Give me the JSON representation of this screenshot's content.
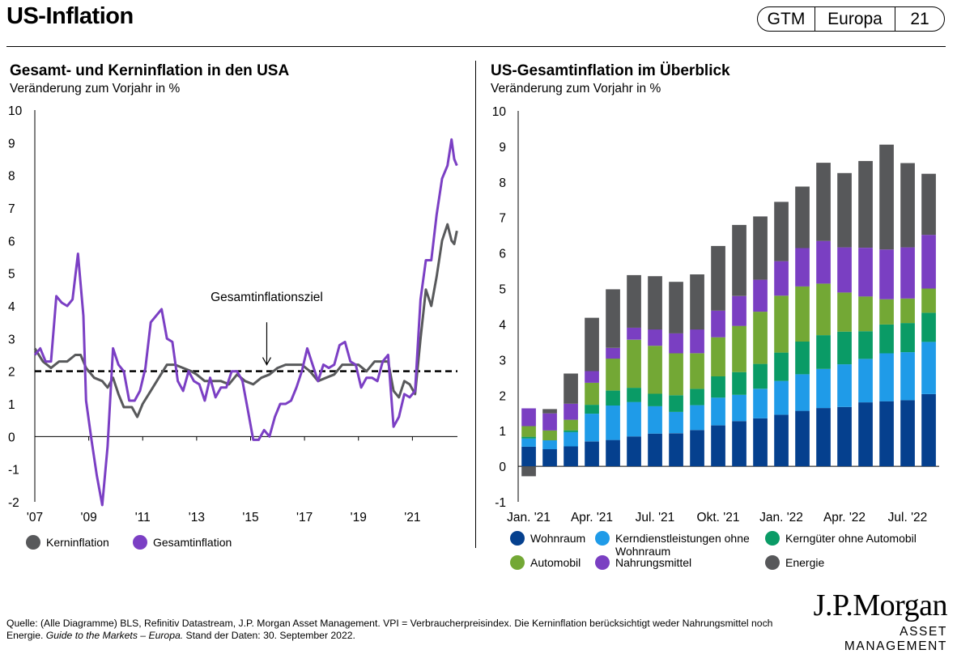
{
  "header": {
    "title": "US-Inflation",
    "pill": [
      "GTM",
      "Europa",
      "21"
    ]
  },
  "chart_data": [
    {
      "type": "line",
      "title": "Gesamt- und Kerninflation in den USA",
      "subtitle": "Veränderung zum Vorjahr in %",
      "xlabel": "",
      "ylabel": "",
      "ylim": [
        -2,
        10
      ],
      "yticks": [
        "10",
        "9",
        "8",
        "7",
        "6",
        "5",
        "4",
        "3",
        "2",
        "1",
        "0",
        "-1",
        "-2"
      ],
      "xlim": [
        2007.0,
        2022.67
      ],
      "xtick_labels": [
        "'07",
        "'09",
        "'11",
        "'13",
        "'15",
        "'17",
        "'19",
        "'21"
      ],
      "xtick_values": [
        2007,
        2009,
        2011,
        2013,
        2015,
        2017,
        2019,
        2021
      ],
      "target": {
        "value": 2,
        "label": "Gesamtinflationsziel"
      },
      "series": [
        {
          "name": "Kerninflation",
          "color": "#58595b",
          "points": [
            [
              2007.0,
              2.7
            ],
            [
              2007.3,
              2.3
            ],
            [
              2007.6,
              2.1
            ],
            [
              2007.9,
              2.3
            ],
            [
              2008.2,
              2.3
            ],
            [
              2008.5,
              2.5
            ],
            [
              2008.7,
              2.5
            ],
            [
              2008.9,
              2.1
            ],
            [
              2009.2,
              1.8
            ],
            [
              2009.5,
              1.7
            ],
            [
              2009.7,
              1.5
            ],
            [
              2009.9,
              1.8
            ],
            [
              2010.1,
              1.3
            ],
            [
              2010.3,
              0.9
            ],
            [
              2010.6,
              0.9
            ],
            [
              2010.8,
              0.6
            ],
            [
              2011.0,
              1.0
            ],
            [
              2011.3,
              1.4
            ],
            [
              2011.6,
              1.8
            ],
            [
              2011.9,
              2.2
            ],
            [
              2012.2,
              2.2
            ],
            [
              2012.5,
              2.1
            ],
            [
              2012.8,
              2.0
            ],
            [
              2013.0,
              1.9
            ],
            [
              2013.3,
              1.7
            ],
            [
              2013.6,
              1.7
            ],
            [
              2013.9,
              1.7
            ],
            [
              2014.2,
              1.6
            ],
            [
              2014.5,
              1.9
            ],
            [
              2014.8,
              1.7
            ],
            [
              2015.1,
              1.6
            ],
            [
              2015.4,
              1.8
            ],
            [
              2015.7,
              1.9
            ],
            [
              2016.0,
              2.1
            ],
            [
              2016.3,
              2.2
            ],
            [
              2016.6,
              2.2
            ],
            [
              2016.9,
              2.2
            ],
            [
              2017.2,
              2.0
            ],
            [
              2017.5,
              1.7
            ],
            [
              2017.8,
              1.8
            ],
            [
              2018.1,
              1.9
            ],
            [
              2018.4,
              2.2
            ],
            [
              2018.7,
              2.2
            ],
            [
              2019.0,
              2.2
            ],
            [
              2019.3,
              2.0
            ],
            [
              2019.6,
              2.3
            ],
            [
              2019.9,
              2.3
            ],
            [
              2020.1,
              2.3
            ],
            [
              2020.3,
              1.4
            ],
            [
              2020.5,
              1.2
            ],
            [
              2020.7,
              1.7
            ],
            [
              2020.9,
              1.6
            ],
            [
              2021.1,
              1.3
            ],
            [
              2021.3,
              3.0
            ],
            [
              2021.5,
              4.5
            ],
            [
              2021.7,
              4.0
            ],
            [
              2021.9,
              4.9
            ],
            [
              2022.1,
              6.0
            ],
            [
              2022.3,
              6.5
            ],
            [
              2022.45,
              6.0
            ],
            [
              2022.55,
              5.9
            ],
            [
              2022.65,
              6.3
            ]
          ]
        },
        {
          "name": "Gesamtinflation",
          "color": "#7b3fc4",
          "points": [
            [
              2007.0,
              2.5
            ],
            [
              2007.2,
              2.7
            ],
            [
              2007.4,
              2.3
            ],
            [
              2007.6,
              2.3
            ],
            [
              2007.8,
              4.3
            ],
            [
              2008.0,
              4.1
            ],
            [
              2008.2,
              4.0
            ],
            [
              2008.4,
              4.2
            ],
            [
              2008.6,
              5.6
            ],
            [
              2008.8,
              3.7
            ],
            [
              2008.9,
              1.1
            ],
            [
              2009.1,
              -0.1
            ],
            [
              2009.3,
              -1.2
            ],
            [
              2009.5,
              -2.1
            ],
            [
              2009.7,
              -0.3
            ],
            [
              2009.9,
              2.7
            ],
            [
              2010.1,
              2.2
            ],
            [
              2010.3,
              2.0
            ],
            [
              2010.5,
              1.1
            ],
            [
              2010.7,
              1.1
            ],
            [
              2010.9,
              1.4
            ],
            [
              2011.1,
              2.1
            ],
            [
              2011.3,
              3.5
            ],
            [
              2011.5,
              3.7
            ],
            [
              2011.7,
              3.9
            ],
            [
              2011.9,
              3.0
            ],
            [
              2012.1,
              2.9
            ],
            [
              2012.3,
              1.7
            ],
            [
              2012.5,
              1.4
            ],
            [
              2012.7,
              2.0
            ],
            [
              2012.9,
              1.7
            ],
            [
              2013.1,
              1.6
            ],
            [
              2013.3,
              1.1
            ],
            [
              2013.5,
              1.8
            ],
            [
              2013.7,
              1.2
            ],
            [
              2013.9,
              1.5
            ],
            [
              2014.1,
              1.5
            ],
            [
              2014.3,
              2.0
            ],
            [
              2014.5,
              2.0
            ],
            [
              2014.7,
              1.7
            ],
            [
              2014.9,
              0.8
            ],
            [
              2015.1,
              -0.1
            ],
            [
              2015.3,
              -0.1
            ],
            [
              2015.5,
              0.2
            ],
            [
              2015.7,
              0.0
            ],
            [
              2015.9,
              0.6
            ],
            [
              2016.1,
              1.0
            ],
            [
              2016.3,
              1.0
            ],
            [
              2016.5,
              1.1
            ],
            [
              2016.7,
              1.5
            ],
            [
              2016.9,
              2.0
            ],
            [
              2017.1,
              2.7
            ],
            [
              2017.3,
              2.2
            ],
            [
              2017.5,
              1.7
            ],
            [
              2017.7,
              2.2
            ],
            [
              2017.9,
              2.1
            ],
            [
              2018.1,
              2.2
            ],
            [
              2018.3,
              2.8
            ],
            [
              2018.5,
              2.9
            ],
            [
              2018.7,
              2.3
            ],
            [
              2018.9,
              2.2
            ],
            [
              2019.1,
              1.5
            ],
            [
              2019.3,
              1.8
            ],
            [
              2019.5,
              1.8
            ],
            [
              2019.7,
              1.7
            ],
            [
              2019.9,
              2.3
            ],
            [
              2020.1,
              2.5
            ],
            [
              2020.3,
              0.3
            ],
            [
              2020.5,
              0.6
            ],
            [
              2020.7,
              1.3
            ],
            [
              2020.9,
              1.2
            ],
            [
              2021.1,
              1.4
            ],
            [
              2021.3,
              4.2
            ],
            [
              2021.5,
              5.4
            ],
            [
              2021.7,
              5.4
            ],
            [
              2021.9,
              6.8
            ],
            [
              2022.1,
              7.9
            ],
            [
              2022.3,
              8.3
            ],
            [
              2022.45,
              9.1
            ],
            [
              2022.55,
              8.5
            ],
            [
              2022.65,
              8.3
            ]
          ]
        }
      ],
      "legend": {
        "placement": "bottom-left"
      }
    },
    {
      "type": "bar",
      "stacked": true,
      "title": "US-Gesamtinflation im Überblick",
      "subtitle": "Veränderung zum Vorjahr in %",
      "xlabel": "",
      "ylabel": "",
      "ylim": [
        -1,
        10
      ],
      "yticks": [
        "10",
        "9",
        "8",
        "7",
        "6",
        "5",
        "4",
        "3",
        "2",
        "1",
        "0",
        "-1"
      ],
      "categories": [
        "Jan. '21",
        "Feb. '21",
        "Mär. '21",
        "Apr. '21",
        "Mai '21",
        "Jun. '21",
        "Jul. '21",
        "Aug. '21",
        "Sep. '21",
        "Okt. '21",
        "Nov. '21",
        "Dez. '21",
        "Jan. '22",
        "Feb. '22",
        "Mär. '22",
        "Apr. '22",
        "Mai '22",
        "Jun. '22",
        "Jul. '22",
        "Aug. '22"
      ],
      "xtick_labels": [
        "Jan. '21",
        "Apr. '21",
        "Jul. '21",
        "Okt. '21",
        "Jan. '22",
        "Apr. '22",
        "Jul. '22"
      ],
      "xtick_index": [
        0,
        3,
        6,
        9,
        12,
        15,
        18
      ],
      "series": [
        {
          "name": "Wohnraum",
          "color": "#05408e",
          "values": [
            0.55,
            0.48,
            0.56,
            0.7,
            0.74,
            0.84,
            0.92,
            0.93,
            1.02,
            1.15,
            1.27,
            1.35,
            1.45,
            1.56,
            1.64,
            1.67,
            1.8,
            1.83,
            1.86,
            2.03
          ]
        },
        {
          "name": "Kerndienstleistungen ohne Wohnraum",
          "color": "#1f9be8",
          "values": [
            0.23,
            0.25,
            0.4,
            0.78,
            0.97,
            0.97,
            0.77,
            0.6,
            0.7,
            0.78,
            0.74,
            0.83,
            0.95,
            1.03,
            1.1,
            1.2,
            1.22,
            1.35,
            1.35,
            1.47
          ]
        },
        {
          "name": "Kerngüter ohne Automobil",
          "color": "#0a9b66",
          "values": [
            0.05,
            0.0,
            0.05,
            0.25,
            0.42,
            0.4,
            0.35,
            0.47,
            0.46,
            0.6,
            0.64,
            0.7,
            0.8,
            0.92,
            0.95,
            0.92,
            0.78,
            0.81,
            0.82,
            0.82
          ]
        },
        {
          "name": "Automobil",
          "color": "#73a835",
          "values": [
            0.3,
            0.28,
            0.3,
            0.62,
            0.9,
            1.35,
            1.35,
            1.18,
            1.0,
            1.1,
            1.3,
            1.47,
            1.6,
            1.55,
            1.45,
            1.1,
            0.98,
            0.71,
            0.69,
            0.68
          ]
        },
        {
          "name": "Nahrungsmittel",
          "color": "#7a3fc2",
          "values": [
            0.5,
            0.48,
            0.45,
            0.33,
            0.3,
            0.34,
            0.46,
            0.56,
            0.67,
            0.75,
            0.84,
            0.9,
            0.97,
            1.08,
            1.2,
            1.27,
            1.37,
            1.4,
            1.44,
            1.51
          ]
        },
        {
          "name": "Energie",
          "color": "#57585a",
          "values": [
            -0.28,
            0.12,
            0.85,
            1.5,
            1.65,
            1.48,
            1.5,
            1.45,
            1.55,
            1.82,
            2.0,
            1.78,
            1.67,
            1.73,
            2.2,
            2.09,
            2.44,
            2.95,
            2.37,
            1.72
          ]
        }
      ],
      "legend": {
        "placement": "bottom"
      }
    }
  ],
  "footer": {
    "source_text": "Quelle: (Alle Diagramme) BLS, Refinitiv Datastream, J.P. Morgan Asset Management. VPI = Verbraucherpreisindex. Die Kerninflation berücksichtigt weder Nahrungsmittel noch Energie. ",
    "guide_text": "Guide to the Markets – Europa.",
    "date_text": " Stand der Daten: 30. September 2022."
  },
  "logo": {
    "main": "J.P.Morgan",
    "sub": "ASSET MANAGEMENT"
  }
}
